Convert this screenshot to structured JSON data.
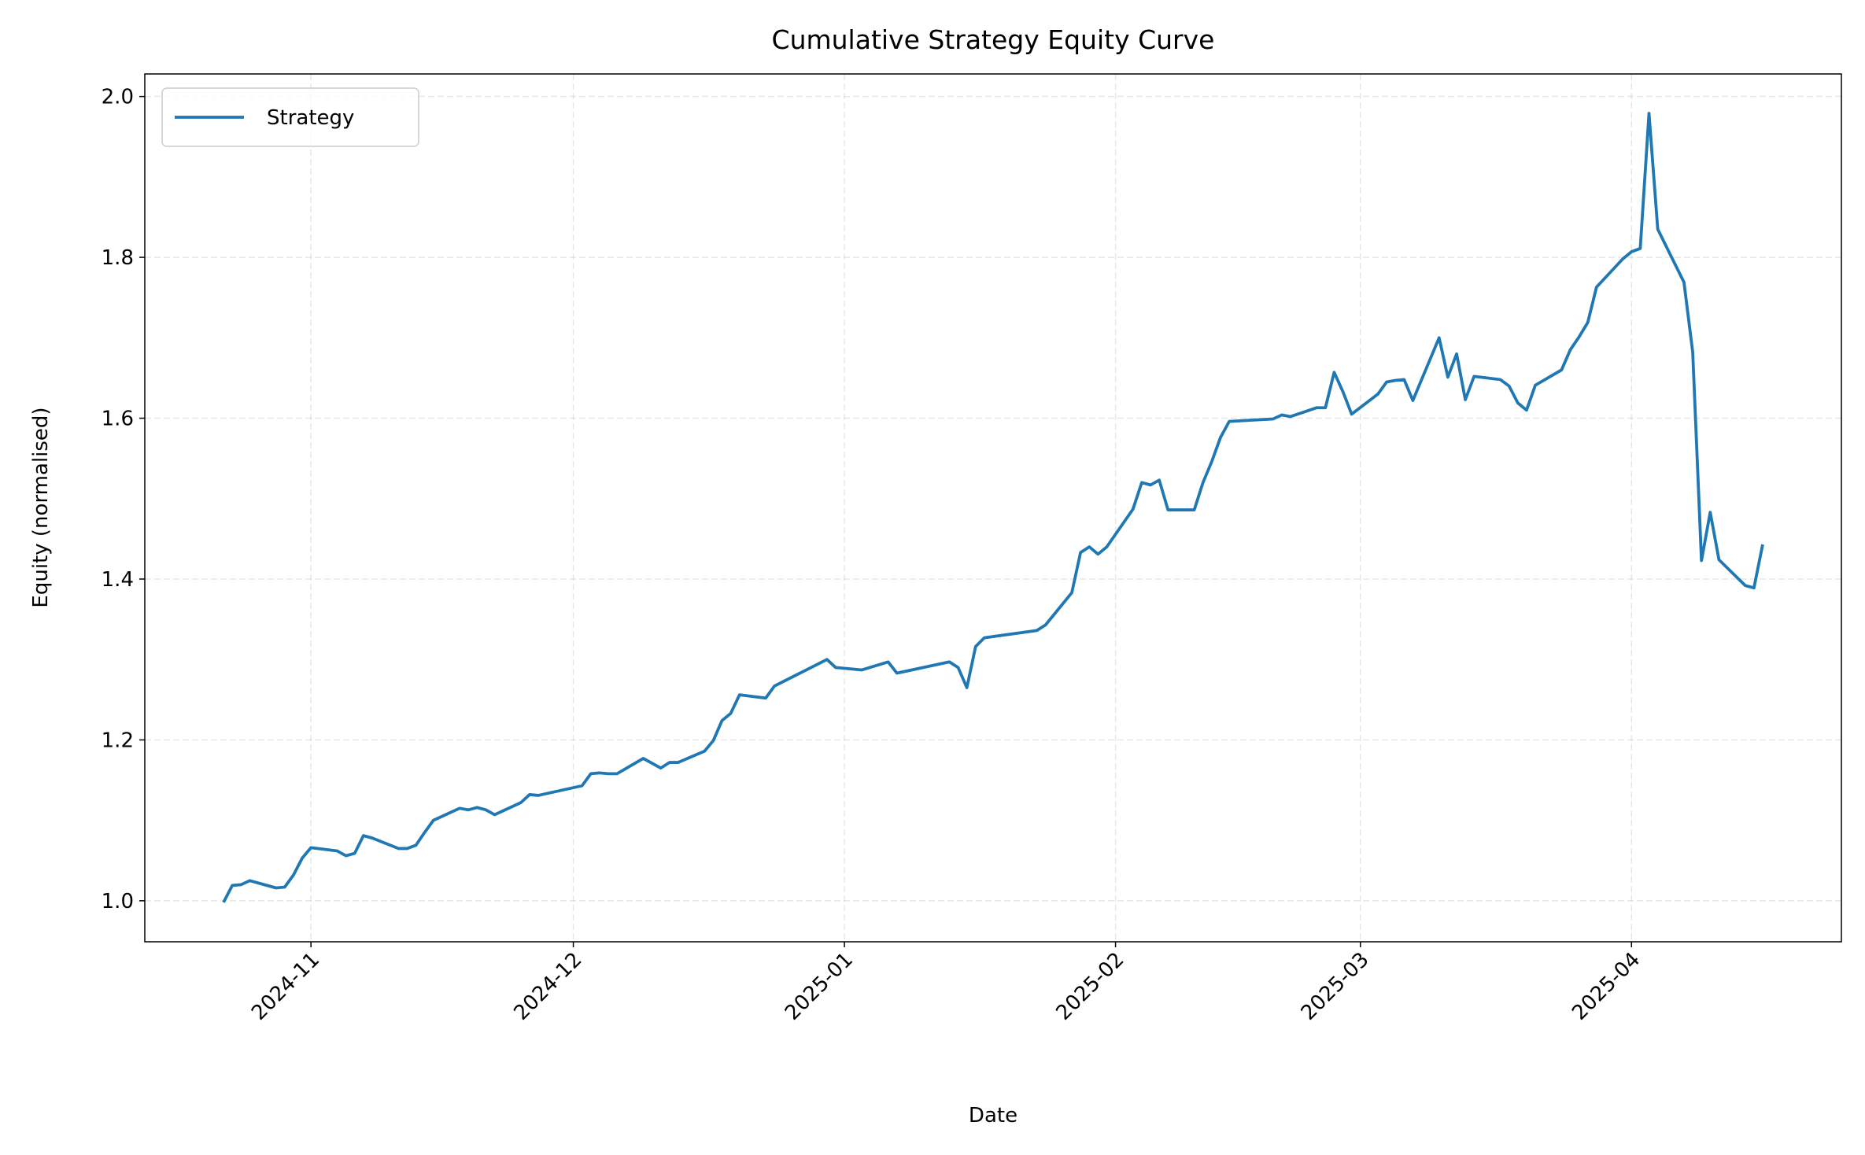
{
  "chart_data": {
    "type": "line",
    "title": "Cumulative Strategy Equity Curve",
    "xlabel": "Date",
    "ylabel": "Equity (normalised)",
    "x": [
      "2024-10-22",
      "2024-10-23",
      "2024-10-24",
      "2024-10-25",
      "2024-10-28",
      "2024-10-29",
      "2024-10-30",
      "2024-10-31",
      "2024-11-01",
      "2024-11-04",
      "2024-11-05",
      "2024-11-06",
      "2024-11-07",
      "2024-11-08",
      "2024-11-11",
      "2024-11-12",
      "2024-11-13",
      "2024-11-14",
      "2024-11-15",
      "2024-11-18",
      "2024-11-19",
      "2024-11-20",
      "2024-11-21",
      "2024-11-22",
      "2024-11-25",
      "2024-11-26",
      "2024-11-27",
      "2024-12-02",
      "2024-12-03",
      "2024-12-04",
      "2024-12-05",
      "2024-12-06",
      "2024-12-09",
      "2024-12-10",
      "2024-12-11",
      "2024-12-12",
      "2024-12-13",
      "2024-12-16",
      "2024-12-17",
      "2024-12-18",
      "2024-12-19",
      "2024-12-20",
      "2024-12-23",
      "2024-12-24",
      "2024-12-30",
      "2024-12-31",
      "2025-01-03",
      "2025-01-06",
      "2025-01-07",
      "2025-01-13",
      "2025-01-14",
      "2025-01-15",
      "2025-01-16",
      "2025-01-17",
      "2025-01-23",
      "2025-01-24",
      "2025-01-27",
      "2025-01-28",
      "2025-01-29",
      "2025-01-30",
      "2025-01-31",
      "2025-02-03",
      "2025-02-04",
      "2025-02-05",
      "2025-02-06",
      "2025-02-07",
      "2025-02-10",
      "2025-02-11",
      "2025-02-12",
      "2025-02-13",
      "2025-02-14",
      "2025-02-19",
      "2025-02-20",
      "2025-02-21",
      "2025-02-24",
      "2025-02-25",
      "2025-02-26",
      "2025-02-27",
      "2025-02-28",
      "2025-03-03",
      "2025-03-04",
      "2025-03-05",
      "2025-03-06",
      "2025-03-07",
      "2025-03-10",
      "2025-03-11",
      "2025-03-12",
      "2025-03-13",
      "2025-03-14",
      "2025-03-17",
      "2025-03-18",
      "2025-03-19",
      "2025-03-20",
      "2025-03-21",
      "2025-03-24",
      "2025-03-25",
      "2025-03-26",
      "2025-03-27",
      "2025-03-28",
      "2025-03-31",
      "2025-04-01",
      "2025-04-02",
      "2025-04-03",
      "2025-04-04",
      "2025-04-07",
      "2025-04-08",
      "2025-04-09",
      "2025-04-10",
      "2025-04-11",
      "2025-04-14",
      "2025-04-15",
      "2025-04-16"
    ],
    "series": [
      {
        "name": "Strategy",
        "color": "#1f77b4",
        "values": [
          0.998,
          1.019,
          1.02,
          1.025,
          1.016,
          1.017,
          1.032,
          1.053,
          1.066,
          1.062,
          1.056,
          1.059,
          1.081,
          1.078,
          1.065,
          1.065,
          1.069,
          1.085,
          1.1,
          1.115,
          1.113,
          1.116,
          1.113,
          1.107,
          1.122,
          1.132,
          1.131,
          1.143,
          1.158,
          1.159,
          1.158,
          1.158,
          1.177,
          1.171,
          1.165,
          1.172,
          1.172,
          1.186,
          1.199,
          1.224,
          1.233,
          1.256,
          1.252,
          1.267,
          1.3,
          1.29,
          1.287,
          1.297,
          1.283,
          1.297,
          1.29,
          1.265,
          1.316,
          1.327,
          1.336,
          1.343,
          1.383,
          1.433,
          1.44,
          1.431,
          1.44,
          1.487,
          1.52,
          1.517,
          1.523,
          1.486,
          1.486,
          1.52,
          1.546,
          1.576,
          1.596,
          1.599,
          1.604,
          1.602,
          1.613,
          1.613,
          1.657,
          1.633,
          1.605,
          1.63,
          1.645,
          1.647,
          1.648,
          1.622,
          1.7,
          1.651,
          1.68,
          1.623,
          1.652,
          1.648,
          1.64,
          1.619,
          1.61,
          1.641,
          1.66,
          1.685,
          1.701,
          1.719,
          1.763,
          1.798,
          1.807,
          1.811,
          1.979,
          1.835,
          1.769,
          1.682,
          1.423,
          1.483,
          1.424,
          1.392,
          1.389,
          1.443
        ]
      }
    ],
    "xlim": [
      "2024-10-13",
      "2025-04-25"
    ],
    "xticks": [
      {
        "value": "2024-11-01",
        "label": "2024-11"
      },
      {
        "value": "2024-12-01",
        "label": "2024-12"
      },
      {
        "value": "2025-01-01",
        "label": "2025-01"
      },
      {
        "value": "2025-02-01",
        "label": "2025-02"
      },
      {
        "value": "2025-03-01",
        "label": "2025-03"
      },
      {
        "value": "2025-04-01",
        "label": "2025-04"
      }
    ],
    "ylim": [
      0.949,
      2.028
    ],
    "yticks": [
      {
        "value": 1.0,
        "label": "1.0"
      },
      {
        "value": 1.2,
        "label": "1.2"
      },
      {
        "value": 1.4,
        "label": "1.4"
      },
      {
        "value": 1.6,
        "label": "1.6"
      },
      {
        "value": 1.8,
        "label": "1.8"
      },
      {
        "value": 2.0,
        "label": "2.0"
      }
    ],
    "grid": true,
    "legend": "upper left"
  }
}
